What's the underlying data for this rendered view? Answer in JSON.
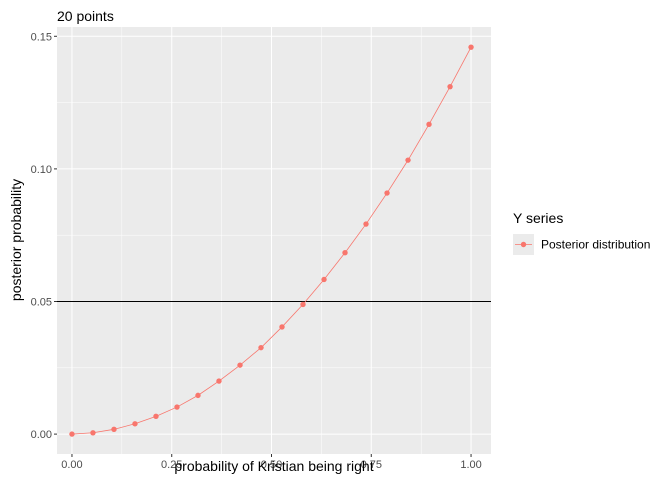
{
  "chart_data": {
    "type": "line",
    "title": "20 points",
    "xlabel": "probability of Kristian being right",
    "ylabel": "posterior probability",
    "xlim": [
      -0.0375,
      1.05
    ],
    "ylim": [
      -0.0075,
      0.1535
    ],
    "x_ticks": [
      {
        "value": 0.0,
        "label": "0.00"
      },
      {
        "value": 0.25,
        "label": "0.25"
      },
      {
        "value": 0.5,
        "label": "0.50"
      },
      {
        "value": 0.75,
        "label": "0.75"
      },
      {
        "value": 1.0,
        "label": "1.00"
      }
    ],
    "y_ticks": [
      {
        "value": 0.0,
        "label": "0.00"
      },
      {
        "value": 0.05,
        "label": "0.05"
      },
      {
        "value": 0.1,
        "label": "0.10"
      },
      {
        "value": 0.15,
        "label": "0.15"
      }
    ],
    "hline": {
      "y": 0.05,
      "color": "#000000"
    },
    "grid": true,
    "legend": {
      "title": "Y series",
      "position": "right"
    },
    "series": [
      {
        "name": "Posterior distribution",
        "color": "#F8766D",
        "points": [
          {
            "x": 0.0,
            "y": 0.0
          },
          {
            "x": 0.0526,
            "y": 0.0005
          },
          {
            "x": 0.1053,
            "y": 0.0018
          },
          {
            "x": 0.1579,
            "y": 0.0039
          },
          {
            "x": 0.2105,
            "y": 0.0067
          },
          {
            "x": 0.2632,
            "y": 0.0102
          },
          {
            "x": 0.3158,
            "y": 0.0146
          },
          {
            "x": 0.3684,
            "y": 0.02
          },
          {
            "x": 0.4211,
            "y": 0.026
          },
          {
            "x": 0.4737,
            "y": 0.0326
          },
          {
            "x": 0.5263,
            "y": 0.0404
          },
          {
            "x": 0.5789,
            "y": 0.0489
          },
          {
            "x": 0.6316,
            "y": 0.0583
          },
          {
            "x": 0.6842,
            "y": 0.0684
          },
          {
            "x": 0.7368,
            "y": 0.0792
          },
          {
            "x": 0.7895,
            "y": 0.0909
          },
          {
            "x": 0.8421,
            "y": 0.1033
          },
          {
            "x": 0.8947,
            "y": 0.1168
          },
          {
            "x": 0.9474,
            "y": 0.131
          },
          {
            "x": 1.0,
            "y": 0.1459
          }
        ]
      }
    ]
  }
}
